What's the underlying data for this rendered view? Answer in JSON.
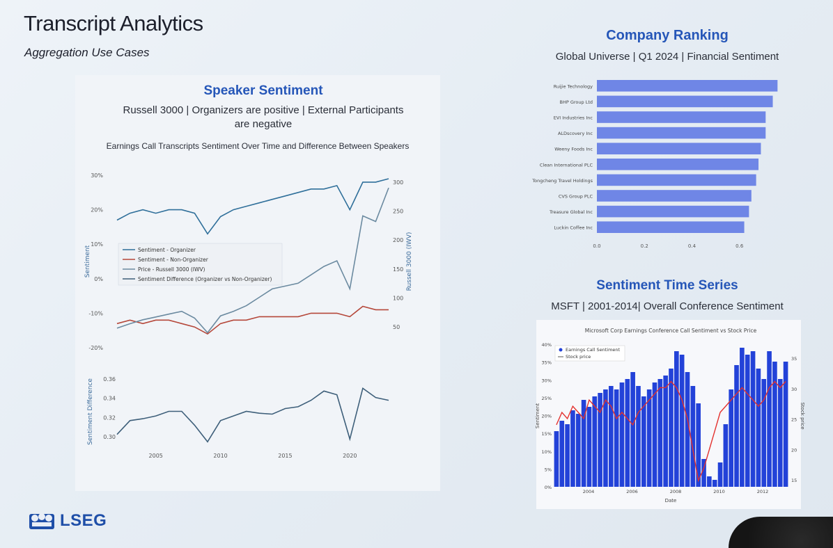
{
  "slide": {
    "title": "Transcript Analytics",
    "subtitle": "Aggregation Use Cases",
    "logo_text": "LSEG"
  },
  "speaker_panel": {
    "heading": "Speaker Sentiment",
    "desc_line1": "Russell 3000 | Organizers are positive | External Participants",
    "desc_line2": "are negative",
    "chart_title": "Earnings Call Transcripts Sentiment Over Time and Difference Between Speakers"
  },
  "ranking_panel": {
    "heading": "Company Ranking",
    "desc": "Global Universe | Q1 2024 | Financial Sentiment"
  },
  "timeseries_panel": {
    "heading": "Sentiment Time Series",
    "desc": "MSFT | 2001-2014| Overall Conference Sentiment",
    "chart_title": "Microsoft Corp Earnings Conference Call Sentiment vs Stock Price"
  },
  "colors": {
    "organizer": "#2f6f9a",
    "non_organizer": "#b5473a",
    "russell": "#6b8aa0",
    "difference": "#3e5f7a",
    "ranking_bar": "#6f86e6",
    "msft_bar": "#2342d8",
    "msft_price": "#e3312e"
  },
  "chart_data": [
    {
      "type": "line",
      "x": [
        2002,
        2003,
        2004,
        2005,
        2006,
        2007,
        2008,
        2009,
        2010,
        2011,
        2012,
        2013,
        2014,
        2015,
        2016,
        2017,
        2018,
        2019,
        2020,
        2021,
        2022,
        2023
      ],
      "ylabel": "Sentiment",
      "y2label": "Russell 3000 (IWV)",
      "xticks": [
        "2005",
        "2010",
        "2015",
        "2020"
      ],
      "yticks": [
        "30%",
        "20%",
        "10%",
        "0%",
        "-10%",
        "-20%"
      ],
      "y2ticks": [
        "300",
        "250",
        "200",
        "150",
        "100",
        "50"
      ],
      "ylim": [
        -0.2,
        0.3
      ],
      "y2lim": [
        30,
        300
      ],
      "series": [
        {
          "name": "Sentiment - Organizer",
          "axis": "left",
          "values": [
            0.17,
            0.19,
            0.2,
            0.19,
            0.2,
            0.2,
            0.19,
            0.13,
            0.18,
            0.2,
            0.21,
            0.22,
            0.23,
            0.24,
            0.25,
            0.26,
            0.26,
            0.27,
            0.2,
            0.28,
            0.28,
            0.29
          ]
        },
        {
          "name": "Sentiment - Non-Organizer",
          "axis": "left",
          "values": [
            -0.13,
            -0.12,
            -0.13,
            -0.12,
            -0.12,
            -0.13,
            -0.14,
            -0.16,
            -0.13,
            -0.12,
            -0.12,
            -0.11,
            -0.11,
            -0.11,
            -0.11,
            -0.1,
            -0.1,
            -0.1,
            -0.11,
            -0.08,
            -0.09,
            -0.09
          ]
        },
        {
          "name": "Price - Russell 3000 (IWV)",
          "axis": "right",
          "values": [
            40,
            48,
            55,
            60,
            65,
            70,
            58,
            32,
            62,
            70,
            80,
            95,
            110,
            115,
            120,
            135,
            150,
            160,
            110,
            240,
            230,
            290
          ]
        },
        {
          "name": "Sentiment Difference (Organizer vs Non-Organizer)",
          "axis": "left",
          "values": [
            0.05,
            0.05,
            0.06,
            0.05,
            0.06,
            0.06,
            0.05,
            0.04,
            0.05,
            0.05,
            0.06,
            0.06,
            0.07,
            0.07,
            0.08,
            0.08,
            0.09,
            0.09,
            0.07,
            0.08,
            0.08,
            0.08
          ]
        }
      ]
    },
    {
      "type": "line",
      "x": [
        2002,
        2003,
        2004,
        2005,
        2006,
        2007,
        2008,
        2009,
        2010,
        2011,
        2012,
        2013,
        2014,
        2015,
        2016,
        2017,
        2018,
        2019,
        2020,
        2021,
        2022,
        2023
      ],
      "ylabel": "Sentiment Difference",
      "xticks": [
        "2005",
        "2010",
        "2015",
        "2020"
      ],
      "yticks": [
        "0.36",
        "0.34",
        "0.32",
        "0.30"
      ],
      "ylim": [
        0.295,
        0.365
      ],
      "series": [
        {
          "name": "Sentiment Difference",
          "values": [
            0.305,
            0.32,
            0.322,
            0.325,
            0.33,
            0.33,
            0.315,
            0.297,
            0.32,
            0.325,
            0.33,
            0.328,
            0.327,
            0.333,
            0.335,
            0.342,
            0.352,
            0.348,
            0.3,
            0.355,
            0.345,
            0.342
          ]
        }
      ]
    },
    {
      "type": "bar",
      "orientation": "horizontal",
      "categories": [
        "Ruijie Technology",
        "BHP Group Ltd",
        "EVI Industries Inc",
        "ALDscovery Inc",
        "Weeny Foods Inc",
        "Clean International PLC",
        "Tongcheng Travel Holdings",
        "CVS Group PLC",
        "Treasure Global Inc",
        "Luckin Coffee Inc"
      ],
      "values": [
        0.76,
        0.74,
        0.71,
        0.71,
        0.69,
        0.68,
        0.67,
        0.65,
        0.64,
        0.62
      ],
      "xticks": [
        "0.0",
        "0.2",
        "0.4",
        "0.6"
      ],
      "xlim": [
        0,
        0.8
      ]
    },
    {
      "type": "bar",
      "title": "Microsoft Corp Earnings Conference Call Sentiment vs Stock Price",
      "xlabel": "Date",
      "ylabel": "Sentiment",
      "y2label": "Stock price",
      "xticks": [
        "2004",
        "2006",
        "2008",
        "2010",
        "2012"
      ],
      "yticks": [
        "0%",
        "5%",
        "10%",
        "15%",
        "20%",
        "25%",
        "30%",
        "35%",
        "40%"
      ],
      "y2ticks": [
        "15",
        "20",
        "25",
        "30",
        "35"
      ],
      "ylim": [
        0,
        0.41
      ],
      "y2lim": [
        14,
        37
      ],
      "series": [
        {
          "name": "Earnings Call Sentiment",
          "values": [
            0.16,
            0.19,
            0.18,
            0.22,
            0.21,
            0.25,
            0.23,
            0.26,
            0.27,
            0.28,
            0.29,
            0.28,
            0.3,
            0.31,
            0.33,
            0.29,
            0.26,
            0.28,
            0.3,
            0.31,
            0.32,
            0.34,
            0.39,
            0.38,
            0.33,
            0.29,
            0.24,
            0.08,
            0.03,
            0.02,
            0.07,
            0.18,
            0.28,
            0.35,
            0.4,
            0.38,
            0.39,
            0.34,
            0.31,
            0.39,
            0.36,
            0.31,
            0.36
          ]
        },
        {
          "name": "Stock price",
          "axis": "right",
          "values": [
            24,
            26,
            25,
            27,
            26,
            25,
            28,
            27,
            26,
            28,
            27,
            25,
            26,
            25,
            24,
            26,
            27,
            28,
            29,
            30,
            30,
            31,
            30,
            28,
            25,
            20,
            15,
            17,
            20,
            23,
            26,
            27,
            28,
            29,
            30,
            29,
            28,
            27,
            28,
            30,
            31,
            30,
            31
          ]
        }
      ]
    }
  ]
}
